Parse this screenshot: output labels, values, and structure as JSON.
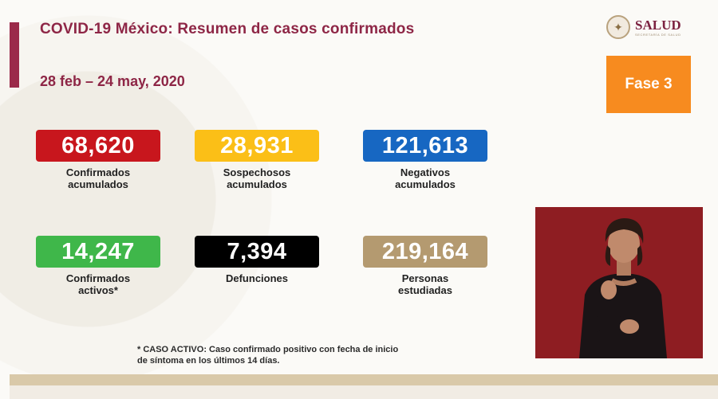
{
  "header": {
    "title": "COVID-19 México: Resumen de casos confirmados",
    "date_range": "28 feb – 24 may, 2020"
  },
  "logo": {
    "name": "SALUD",
    "subtitle": "SECRETARÍA DE SALUD"
  },
  "phase_badge": "Fase 3",
  "stats": [
    {
      "value": "68,620",
      "label_line1": "Confirmados",
      "label_line2": "acumulados",
      "color": "#c8161d"
    },
    {
      "value": "28,931",
      "label_line1": "Sospechosos",
      "label_line2": "acumulados",
      "color": "#fbbf17"
    },
    {
      "value": "121,613",
      "label_line1": "Negativos",
      "label_line2": "acumulados",
      "color": "#1767c2"
    },
    {
      "value": "14,247",
      "label_line1": "Confirmados",
      "label_line2": "activos*",
      "color": "#3fb74a"
    },
    {
      "value": "7,394",
      "label_line1": "Defunciones",
      "label_line2": "",
      "color": "#000000"
    },
    {
      "value": "219,164",
      "label_line1": "Personas",
      "label_line2": "estudiadas",
      "color": "#b49a70"
    }
  ],
  "footnote": {
    "line1": "* CASO ACTIVO: Caso confirmado positivo con fecha de inicio",
    "line2": "de síntoma en los últimos 14 días."
  },
  "colors": {
    "title": "#8e2646",
    "accent_bar": "#9b2a4a",
    "phase_badge": "#f78b1f",
    "interpreter_bg": "#8e1d22"
  }
}
